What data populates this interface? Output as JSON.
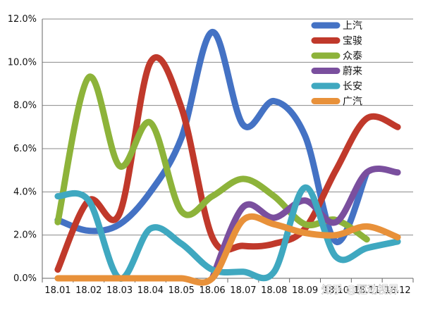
{
  "chart_data": {
    "type": "line",
    "title": "",
    "xlabel": "",
    "ylabel": "",
    "categories": [
      "18.01",
      "18.02",
      "18.03",
      "18.04",
      "18.05",
      "18.06",
      "18.07",
      "18.08",
      "18.09",
      "18.10",
      "18.11",
      "18.12"
    ],
    "ylim": [
      0,
      12
    ],
    "yticks": [
      "0.0%",
      "2.0%",
      "4.0%",
      "6.0%",
      "8.0%",
      "10.0%",
      "12.0%"
    ],
    "grid": true,
    "legend_position": "top-right",
    "series": [
      {
        "name": "上汽",
        "color": "#4472C4",
        "values": [
          2.7,
          2.2,
          2.5,
          4.0,
          6.5,
          11.4,
          7.1,
          8.2,
          6.6,
          1.7,
          4.9,
          null
        ]
      },
      {
        "name": "宝骏",
        "color": "#C0392B",
        "values": [
          0.4,
          3.6,
          3.0,
          10.0,
          7.9,
          1.9,
          1.5,
          1.6,
          2.3,
          5.0,
          7.4,
          7.0
        ]
      },
      {
        "name": "众泰",
        "color": "#8DB33A",
        "values": [
          2.6,
          9.3,
          5.2,
          7.2,
          3.1,
          3.8,
          4.6,
          3.8,
          2.5,
          2.7,
          1.8,
          null
        ]
      },
      {
        "name": "蔚来",
        "color": "#7A4F9E",
        "values": [
          null,
          null,
          null,
          null,
          null,
          0.0,
          3.3,
          2.8,
          3.6,
          2.6,
          4.9,
          4.9
        ]
      },
      {
        "name": "长安",
        "color": "#3FA8C0",
        "values": [
          3.8,
          3.6,
          0.0,
          2.3,
          1.6,
          0.4,
          0.3,
          0.3,
          4.2,
          1.0,
          1.4,
          1.7
        ]
      },
      {
        "name": "广汽",
        "color": "#E8913A",
        "values": [
          0.0,
          0.0,
          0.0,
          0.0,
          0.0,
          0.0,
          2.7,
          2.5,
          2.1,
          2.0,
          2.4,
          1.9
        ]
      }
    ]
  },
  "watermark": "知乎 @驱动视界"
}
